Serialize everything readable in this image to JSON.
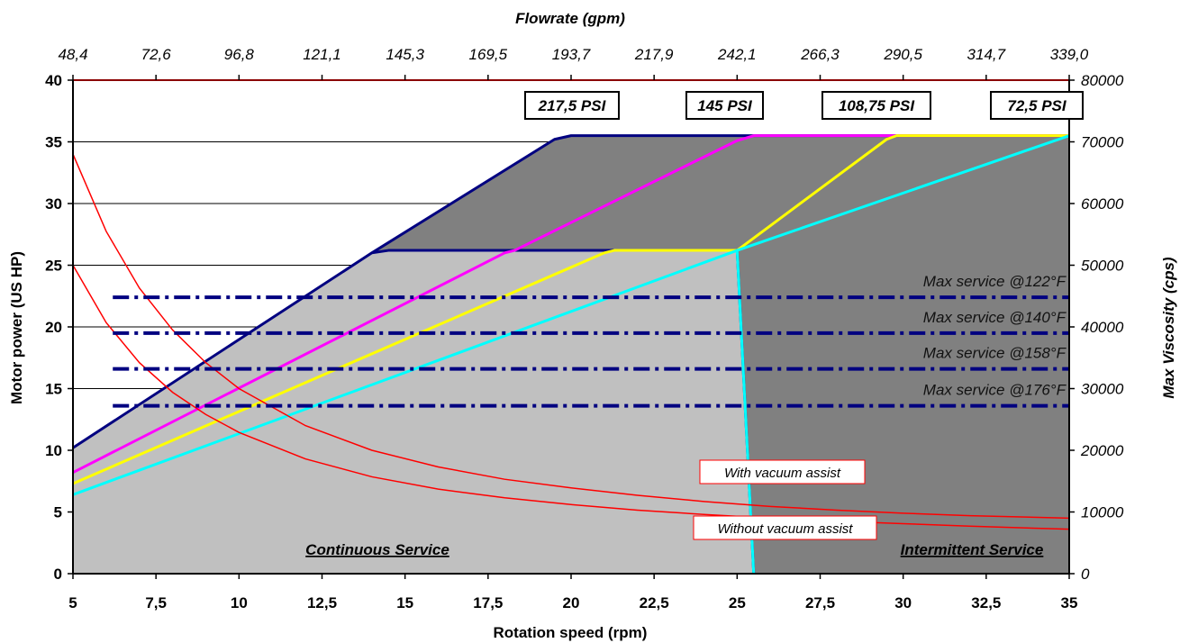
{
  "chart_data": {
    "type": "line",
    "xlabel": "Rotation speed (rpm)",
    "ylabel": "Motor power (US HP)",
    "x2label": "Flowrate (gpm)",
    "y2label": "Max Viscosity (cps)",
    "xlim": [
      5,
      35
    ],
    "ylim": [
      0,
      40
    ],
    "y2lim": [
      0,
      80000
    ],
    "x_ticks": [
      "5",
      "7,5",
      "10",
      "12,5",
      "15",
      "17,5",
      "20",
      "22,5",
      "25",
      "27,5",
      "30",
      "32,5",
      "35"
    ],
    "x_tick_values": [
      5,
      7.5,
      10,
      12.5,
      15,
      17.5,
      20,
      22.5,
      25,
      27.5,
      30,
      32.5,
      35
    ],
    "y_ticks": [
      "0",
      "5",
      "10",
      "15",
      "20",
      "25",
      "30",
      "35",
      "40"
    ],
    "y_tick_values": [
      0,
      5,
      10,
      15,
      20,
      25,
      30,
      35,
      40
    ],
    "y2_ticks": [
      "0",
      "10000",
      "20000",
      "30000",
      "40000",
      "50000",
      "60000",
      "70000",
      "80000"
    ],
    "x2_ticks": [
      "48,4",
      "72,6",
      "96,8",
      "121,1",
      "145,3",
      "169,5",
      "193,7",
      "217,9",
      "242,1",
      "266,3",
      "290,5",
      "314,7",
      "339,0"
    ],
    "grid": true,
    "colors": {
      "continuous_fill": "#c0c0c0",
      "intermittent_fill": "#808080",
      "envelope": "#000080",
      "psi_217": "#000080",
      "psi_145": "#ff00ff",
      "psi_108": "#ffff00",
      "psi_72": "#00ffff",
      "viscosity": "#ff0000",
      "service": "#000080"
    },
    "continuous_region": [
      [
        5,
        10.2
      ],
      [
        14,
        26
      ],
      [
        14.5,
        26.2
      ],
      [
        25,
        26.2
      ],
      [
        25.5,
        0
      ],
      [
        5,
        0
      ]
    ],
    "intermittent_region": [
      [
        14,
        26
      ],
      [
        19.5,
        35.2
      ],
      [
        20,
        35.5
      ],
      [
        35,
        35.5
      ],
      [
        35,
        0
      ],
      [
        25.5,
        0
      ],
      [
        25,
        26.2
      ],
      [
        14.5,
        26.2
      ]
    ],
    "series": [
      {
        "name": "217,5 PSI",
        "label": "217,5 PSI",
        "color_key": "psi_217",
        "x": [
          5,
          14,
          14.5,
          25,
          25.5
        ],
        "y": [
          10.2,
          26,
          26.2,
          26.2,
          0
        ]
      },
      {
        "name": "217,5 PSI",
        "color_key": "psi_217",
        "x": [
          14,
          19.5,
          20,
          35
        ],
        "y": [
          26,
          35.2,
          35.5,
          35.5
        ]
      },
      {
        "name": "145 PSI",
        "label": "145 PSI",
        "color_key": "psi_145",
        "x": [
          5,
          18,
          18.3,
          25,
          25.5,
          35
        ],
        "y": [
          8.2,
          26,
          26.2,
          35.1,
          35.5,
          35.5
        ]
      },
      {
        "name": "108,75 PSI",
        "label": "108,75 PSI",
        "color_key": "psi_108",
        "x": [
          5,
          21,
          21.3,
          25,
          29.5,
          29.8,
          35
        ],
        "y": [
          7.3,
          26,
          26.2,
          26.2,
          35.2,
          35.5,
          35.5
        ]
      },
      {
        "name": "72,5 PSI",
        "label": "72,5 PSI",
        "color_key": "psi_72",
        "x": [
          5,
          25,
          35
        ],
        "y": [
          6.4,
          26.2,
          35.5
        ]
      },
      {
        "name": "72,5 PSI",
        "color_key": "psi_72",
        "x": [
          25,
          25.5
        ],
        "y": [
          26.2,
          0
        ]
      }
    ],
    "viscosity_curves": [
      {
        "label": "With vacuum assist",
        "x": [
          5,
          6,
          7,
          8,
          9,
          10,
          12,
          14,
          16,
          18,
          20,
          22,
          24,
          26,
          28,
          30,
          32,
          35
        ],
        "y2": [
          68000,
          55500,
          46300,
          39500,
          34200,
          30000,
          24000,
          20000,
          17300,
          15300,
          13900,
          12700,
          11700,
          10900,
          10300,
          9800,
          9400,
          9000
        ]
      },
      {
        "label": "Without vacuum assist",
        "x": [
          5,
          6,
          7,
          8,
          9,
          10,
          12,
          14,
          16,
          18,
          20,
          22,
          24,
          26,
          28,
          30,
          32,
          35
        ],
        "y2": [
          50000,
          40700,
          34200,
          29400,
          25800,
          22900,
          18600,
          15700,
          13700,
          12300,
          11200,
          10300,
          9600,
          9000,
          8500,
          8100,
          7700,
          7200
        ]
      }
    ],
    "service_lines": [
      {
        "label": "Max service @122°F",
        "y": 22.4
      },
      {
        "label": "Max service @140°F",
        "y": 19.5
      },
      {
        "label": "Max service @158°F",
        "y": 16.6
      },
      {
        "label": "Max service @176°F",
        "y": 13.6
      }
    ],
    "service_line_start_x": 6.2,
    "region_labels": [
      "Continuous Service",
      "Intermittent Service"
    ]
  }
}
